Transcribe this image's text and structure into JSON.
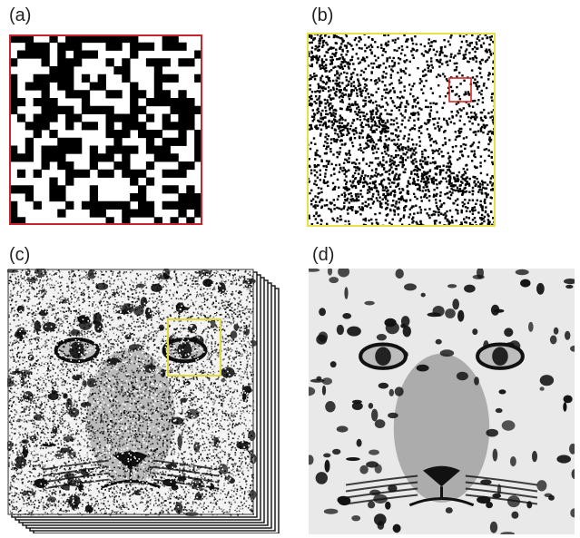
{
  "figure": {
    "panels": [
      {
        "id": "a",
        "label": "(a)",
        "border_color": "#c8242b"
      },
      {
        "id": "b",
        "label": "(b)",
        "border_color": "#e8e04a",
        "roi_color": "#d42a2a"
      },
      {
        "id": "c",
        "label": "(c)",
        "roi_color": "#e1d83c"
      },
      {
        "id": "d",
        "label": "(d)"
      }
    ]
  }
}
